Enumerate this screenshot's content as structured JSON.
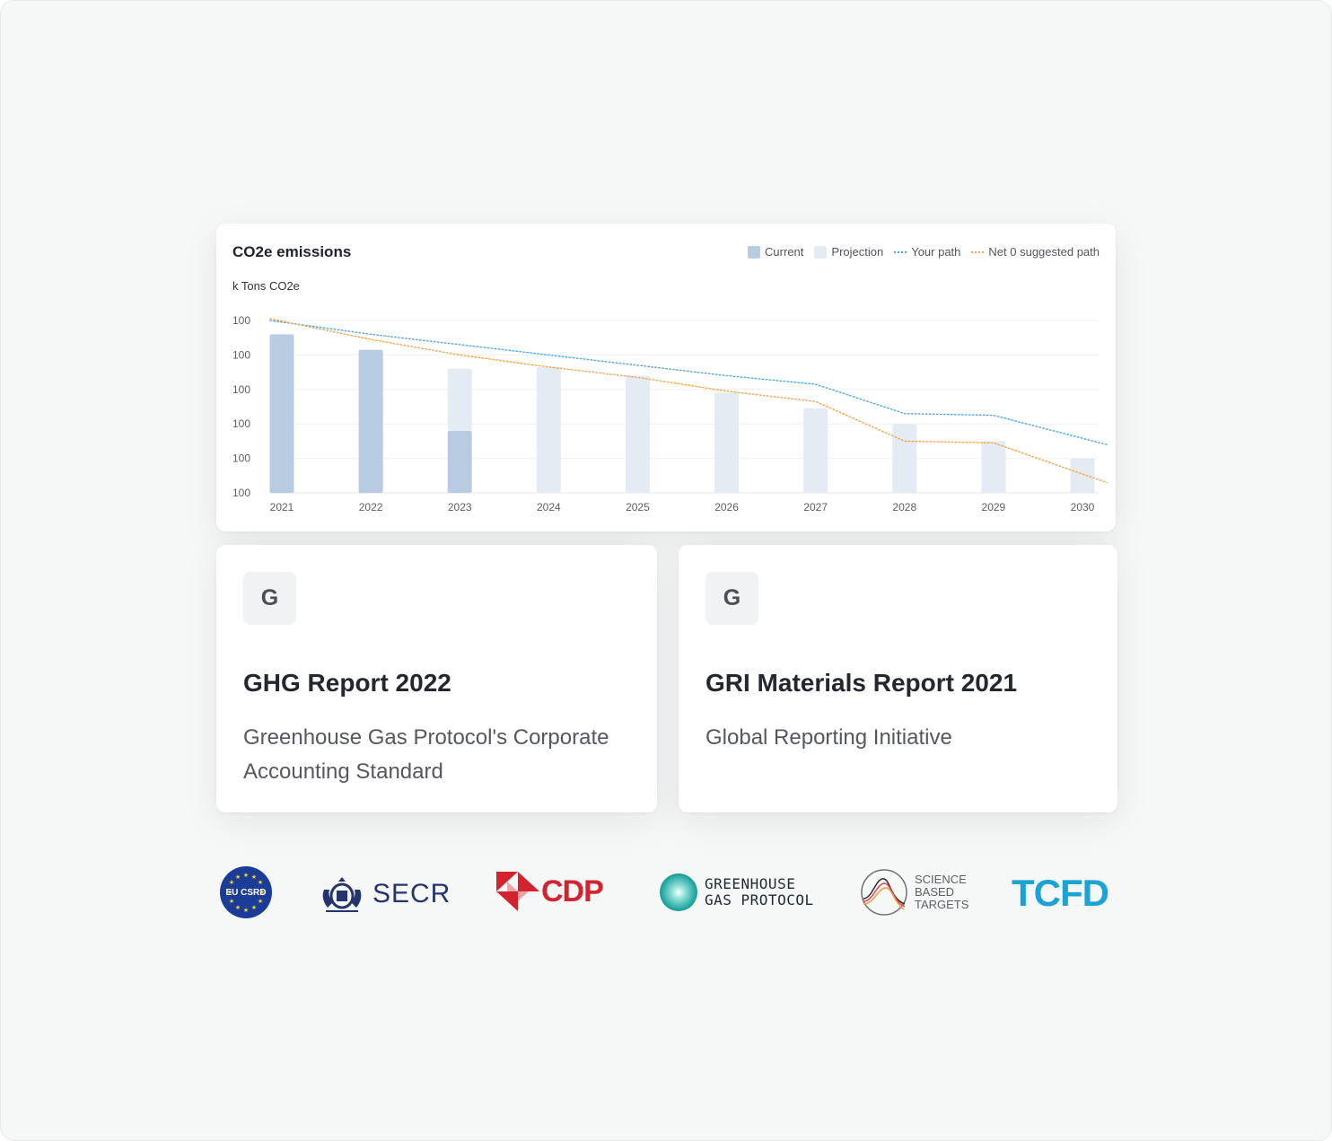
{
  "chart_data": {
    "type": "bar",
    "title": "CO2e emissions",
    "ylabel": "k Tons CO2e",
    "y_tick_labels": [
      "100",
      "100",
      "100",
      "100",
      "100",
      "100"
    ],
    "categories": [
      "2021",
      "2022",
      "2023",
      "2024",
      "2025",
      "2026",
      "2027",
      "2028",
      "2029",
      "2030"
    ],
    "ylim": [
      0,
      100
    ],
    "grid": true,
    "legend_position": "top-right",
    "series": [
      {
        "name": "Current",
        "kind": "bar",
        "color": "#b8cbe1",
        "values": [
          92,
          83,
          36,
          0,
          0,
          0,
          0,
          0,
          0,
          0
        ]
      },
      {
        "name": "Projection",
        "kind": "bar",
        "color": "#e5ebf3",
        "values": [
          0,
          0,
          36,
          73,
          68,
          58,
          49,
          40,
          30,
          20
        ]
      },
      {
        "name": "Your path",
        "kind": "line",
        "style": "dotted",
        "color": "#4aa6e8",
        "values": [
          100,
          92,
          86,
          80,
          74,
          68,
          63,
          46,
          45,
          28
        ]
      },
      {
        "name": "Net 0 suggested path",
        "kind": "line",
        "style": "dotted",
        "color": "#f3a340",
        "values": [
          101,
          89,
          80,
          73,
          67,
          59,
          53,
          30,
          29,
          6
        ]
      }
    ]
  },
  "reports": [
    {
      "icon_letter": "G",
      "title": "GHG Report 2022",
      "subtitle": "Greenhouse Gas Protocol's Corporate Accounting Standard"
    },
    {
      "icon_letter": "G",
      "title": "GRI Materials Report 2021",
      "subtitle": "Global Reporting Initiative"
    }
  ],
  "logos": {
    "eu_csrd": "EU CSRD",
    "secr": "SECR",
    "cdp": "CDP",
    "ghg_line1": "GREENHOUSE",
    "ghg_line2": "GAS PROTOCOL",
    "sbt_line1": "SCIENCE",
    "sbt_line2": "BASED",
    "sbt_line3": "TARGETS",
    "tcfd": "TCFD"
  }
}
